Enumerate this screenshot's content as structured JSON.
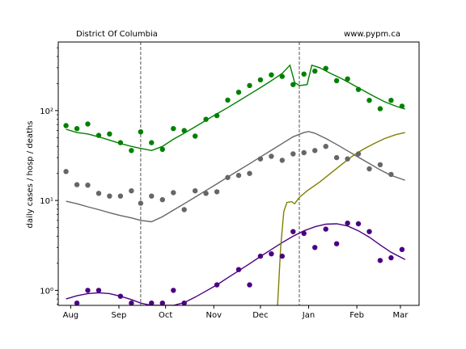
{
  "chart_data": {
    "type": "scatter",
    "title_left": "District Of Columbia",
    "title_right": "www.pypm.ca",
    "ylabel": "daily cases / hosp / deaths",
    "xlabel": "",
    "yscale": "log",
    "x_tick_labels": [
      "Aug",
      "Sep",
      "Oct",
      "Nov",
      "Dec",
      "Jan",
      "Feb",
      "Mar"
    ],
    "x_tick_dates": [
      "2020-08-01",
      "2020-09-01",
      "2020-10-01",
      "2020-11-01",
      "2020-12-01",
      "2021-01-01",
      "2021-02-01",
      "2021-03-01"
    ],
    "y_tick_values": [
      1,
      10,
      100
    ],
    "y_tick_labels": [
      "10⁰",
      "10¹",
      "10²"
    ],
    "xlim": [
      "2020-07-24",
      "2021-03-13"
    ],
    "ylim": [
      0.68,
      580
    ],
    "vlines": [
      "2020-09-15",
      "2020-12-26"
    ],
    "grid": false,
    "series": [
      {
        "color": "#008000",
        "points": [
          [
            "2020-07-29",
            68
          ],
          [
            "2020-08-05",
            63
          ],
          [
            "2020-08-12",
            71
          ],
          [
            "2020-08-19",
            53
          ],
          [
            "2020-08-26",
            55
          ],
          [
            "2020-09-02",
            44
          ],
          [
            "2020-09-09",
            36
          ],
          [
            "2020-09-15",
            58
          ],
          [
            "2020-09-22",
            44
          ],
          [
            "2020-09-29",
            37
          ],
          [
            "2020-10-06",
            63
          ],
          [
            "2020-10-13",
            60
          ],
          [
            "2020-10-20",
            52
          ],
          [
            "2020-10-27",
            80
          ],
          [
            "2020-11-03",
            88
          ],
          [
            "2020-11-10",
            131
          ],
          [
            "2020-11-17",
            160
          ],
          [
            "2020-11-24",
            190
          ],
          [
            "2020-12-01",
            220
          ],
          [
            "2020-12-08",
            250
          ],
          [
            "2020-12-15",
            240
          ],
          [
            "2020-12-22",
            195
          ],
          [
            "2020-12-29",
            255
          ],
          [
            "2021-01-05",
            275
          ],
          [
            "2021-01-12",
            295
          ],
          [
            "2021-01-19",
            215
          ],
          [
            "2021-01-26",
            225
          ],
          [
            "2021-02-02",
            172
          ],
          [
            "2021-02-09",
            130
          ],
          [
            "2021-02-16",
            105
          ],
          [
            "2021-02-23",
            130
          ],
          [
            "2021-03-02",
            112
          ]
        ],
        "model": [
          [
            "2020-07-29",
            62
          ],
          [
            "2020-08-05",
            57
          ],
          [
            "2020-08-12",
            55
          ],
          [
            "2020-08-19",
            51
          ],
          [
            "2020-08-26",
            47
          ],
          [
            "2020-09-02",
            43
          ],
          [
            "2020-09-09",
            40
          ],
          [
            "2020-09-15",
            38
          ],
          [
            "2020-09-22",
            36
          ],
          [
            "2020-09-29",
            40
          ],
          [
            "2020-10-06",
            48
          ],
          [
            "2020-10-13",
            56
          ],
          [
            "2020-10-20",
            66
          ],
          [
            "2020-10-27",
            78
          ],
          [
            "2020-11-03",
            92
          ],
          [
            "2020-11-10",
            108
          ],
          [
            "2020-11-17",
            128
          ],
          [
            "2020-11-24",
            152
          ],
          [
            "2020-12-01",
            180
          ],
          [
            "2020-12-08",
            215
          ],
          [
            "2020-12-15",
            260
          ],
          [
            "2020-12-20",
            320
          ],
          [
            "2020-12-23",
            205
          ],
          [
            "2020-12-26",
            190
          ],
          [
            "2020-12-31",
            195
          ],
          [
            "2021-01-03",
            320
          ],
          [
            "2021-01-08",
            300
          ],
          [
            "2021-01-15",
            260
          ],
          [
            "2021-01-22",
            228
          ],
          [
            "2021-01-29",
            196
          ],
          [
            "2021-02-05",
            168
          ],
          [
            "2021-02-12",
            144
          ],
          [
            "2021-02-19",
            125
          ],
          [
            "2021-02-26",
            112
          ],
          [
            "2021-03-04",
            104
          ]
        ]
      },
      {
        "color": "#666666",
        "points": [
          [
            "2020-07-29",
            21
          ],
          [
            "2020-08-05",
            15
          ],
          [
            "2020-08-12",
            14.8
          ],
          [
            "2020-08-19",
            12
          ],
          [
            "2020-08-26",
            11.2
          ],
          [
            "2020-09-02",
            11.2
          ],
          [
            "2020-09-09",
            12.8
          ],
          [
            "2020-09-15",
            9.3
          ],
          [
            "2020-09-22",
            11.2
          ],
          [
            "2020-09-29",
            10.2
          ],
          [
            "2020-10-06",
            12.2
          ],
          [
            "2020-10-13",
            7.9
          ],
          [
            "2020-10-20",
            12.8
          ],
          [
            "2020-10-27",
            12.0
          ],
          [
            "2020-11-03",
            12.5
          ],
          [
            "2020-11-10",
            18
          ],
          [
            "2020-11-17",
            19
          ],
          [
            "2020-11-24",
            20
          ],
          [
            "2020-12-01",
            29
          ],
          [
            "2020-12-08",
            31
          ],
          [
            "2020-12-15",
            28
          ],
          [
            "2020-12-22",
            33
          ],
          [
            "2020-12-29",
            34
          ],
          [
            "2021-01-05",
            36
          ],
          [
            "2021-01-12",
            40
          ],
          [
            "2021-01-19",
            30
          ],
          [
            "2021-01-26",
            29
          ],
          [
            "2021-02-02",
            33
          ],
          [
            "2021-02-09",
            22.5
          ],
          [
            "2021-02-16",
            25
          ],
          [
            "2021-02-23",
            19.5
          ]
        ],
        "model": [
          [
            "2020-07-29",
            9.8
          ],
          [
            "2020-08-05",
            9.2
          ],
          [
            "2020-08-12",
            8.5
          ],
          [
            "2020-08-19",
            7.9
          ],
          [
            "2020-08-26",
            7.3
          ],
          [
            "2020-09-02",
            6.8
          ],
          [
            "2020-09-09",
            6.4
          ],
          [
            "2020-09-15",
            6.0
          ],
          [
            "2020-09-22",
            5.8
          ],
          [
            "2020-09-29",
            6.6
          ],
          [
            "2020-10-06",
            7.8
          ],
          [
            "2020-10-13",
            9.2
          ],
          [
            "2020-10-20",
            10.9
          ],
          [
            "2020-10-27",
            12.9
          ],
          [
            "2020-11-03",
            15.3
          ],
          [
            "2020-11-10",
            18.2
          ],
          [
            "2020-11-17",
            21.6
          ],
          [
            "2020-11-24",
            25.6
          ],
          [
            "2020-12-01",
            30.5
          ],
          [
            "2020-12-08",
            36.2
          ],
          [
            "2020-12-15",
            43.0
          ],
          [
            "2020-12-22",
            51.1
          ],
          [
            "2020-12-29",
            57.0
          ],
          [
            "2021-01-01",
            58.5
          ],
          [
            "2021-01-05",
            56.0
          ],
          [
            "2021-01-12",
            49.0
          ],
          [
            "2021-01-19",
            42.0
          ],
          [
            "2021-01-26",
            35.7
          ],
          [
            "2021-02-02",
            30.3
          ],
          [
            "2021-02-09",
            25.8
          ],
          [
            "2021-02-16",
            21.9
          ],
          [
            "2021-02-23",
            19.0
          ],
          [
            "2021-03-04",
            16.8
          ]
        ]
      },
      {
        "color": "#4b0082",
        "points": [
          [
            "2020-08-05",
            0.72
          ],
          [
            "2020-08-12",
            1.0
          ],
          [
            "2020-08-19",
            1.0
          ],
          [
            "2020-09-02",
            0.86
          ],
          [
            "2020-09-09",
            0.72
          ],
          [
            "2020-09-22",
            0.72
          ],
          [
            "2020-09-29",
            0.72
          ],
          [
            "2020-10-06",
            1.0
          ],
          [
            "2020-10-13",
            0.72
          ],
          [
            "2020-11-03",
            1.15
          ],
          [
            "2020-11-17",
            1.7
          ],
          [
            "2020-11-24",
            1.15
          ],
          [
            "2020-12-01",
            2.4
          ],
          [
            "2020-12-08",
            2.55
          ],
          [
            "2020-12-15",
            2.4
          ],
          [
            "2020-12-22",
            4.5
          ],
          [
            "2020-12-29",
            4.3
          ],
          [
            "2021-01-05",
            3.0
          ],
          [
            "2021-01-12",
            4.8
          ],
          [
            "2021-01-19",
            3.3
          ],
          [
            "2021-01-26",
            5.6
          ],
          [
            "2021-02-02",
            5.5
          ],
          [
            "2021-02-09",
            4.5
          ],
          [
            "2021-02-16",
            2.15
          ],
          [
            "2021-02-23",
            2.3
          ],
          [
            "2021-03-02",
            2.85
          ]
        ],
        "model": [
          [
            "2020-07-29",
            0.8
          ],
          [
            "2020-08-05",
            0.87
          ],
          [
            "2020-08-12",
            0.92
          ],
          [
            "2020-08-19",
            0.94
          ],
          [
            "2020-08-26",
            0.92
          ],
          [
            "2020-09-02",
            0.86
          ],
          [
            "2020-09-09",
            0.79
          ],
          [
            "2020-09-15",
            0.72
          ],
          [
            "2020-09-22",
            0.66
          ],
          [
            "2020-09-29",
            0.64
          ],
          [
            "2020-10-06",
            0.66
          ],
          [
            "2020-10-13",
            0.73
          ],
          [
            "2020-10-20",
            0.84
          ],
          [
            "2020-10-27",
            0.98
          ],
          [
            "2020-11-03",
            1.15
          ],
          [
            "2020-11-10",
            1.38
          ],
          [
            "2020-11-17",
            1.65
          ],
          [
            "2020-11-24",
            1.98
          ],
          [
            "2020-12-01",
            2.38
          ],
          [
            "2020-12-08",
            2.85
          ],
          [
            "2020-12-15",
            3.4
          ],
          [
            "2020-12-22",
            4.0
          ],
          [
            "2020-12-29",
            4.6
          ],
          [
            "2021-01-05",
            5.1
          ],
          [
            "2021-01-12",
            5.45
          ],
          [
            "2021-01-19",
            5.5
          ],
          [
            "2021-01-26",
            5.2
          ],
          [
            "2021-02-02",
            4.6
          ],
          [
            "2021-02-09",
            3.9
          ],
          [
            "2021-02-16",
            3.2
          ],
          [
            "2021-02-23",
            2.65
          ],
          [
            "2021-03-04",
            2.2
          ]
        ]
      },
      {
        "color": "#808000",
        "points": [],
        "model": [
          [
            "2020-12-12",
            0.68
          ],
          [
            "2020-12-14",
            3.0
          ],
          [
            "2020-12-16",
            7.5
          ],
          [
            "2020-12-18",
            9.5
          ],
          [
            "2020-12-21",
            9.7
          ],
          [
            "2020-12-23",
            9.2
          ],
          [
            "2020-12-26",
            10.8
          ],
          [
            "2020-12-31",
            12.8
          ],
          [
            "2021-01-08",
            16.0
          ],
          [
            "2021-01-15",
            20.0
          ],
          [
            "2021-01-22",
            25.0
          ],
          [
            "2021-01-29",
            31.0
          ],
          [
            "2021-02-05",
            37.0
          ],
          [
            "2021-02-12",
            43.0
          ],
          [
            "2021-02-19",
            49.0
          ],
          [
            "2021-02-26",
            54.0
          ],
          [
            "2021-03-04",
            57.0
          ]
        ]
      }
    ]
  }
}
